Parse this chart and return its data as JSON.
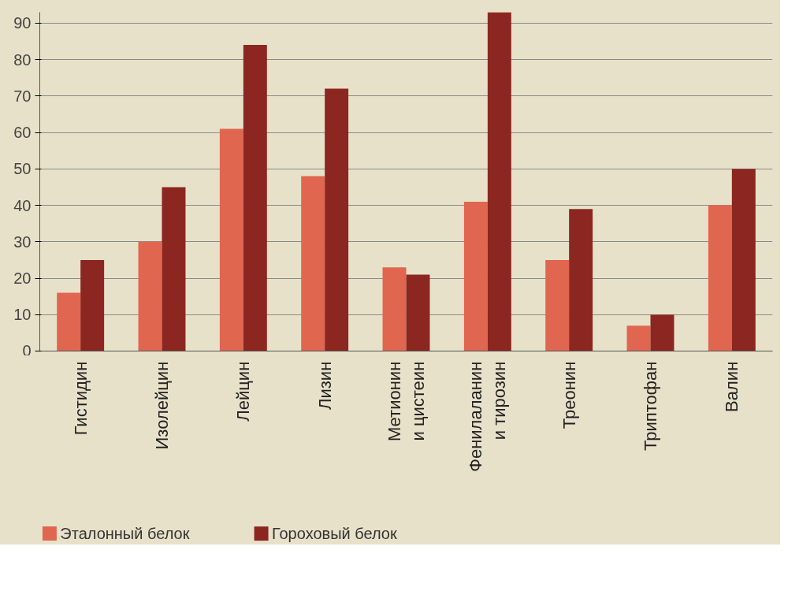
{
  "chart_data": {
    "type": "bar",
    "categories": [
      "Гистидин",
      "Изолейцин",
      "Лейцин",
      "Лизин",
      "Метионин\nи цистеин",
      "Фенилаланин\nи тирозин",
      "Треонин",
      "Триптофан",
      "Валин"
    ],
    "series": [
      {
        "name": "Эталонный белок",
        "color": "#e06650",
        "values": [
          16,
          30,
          61,
          48,
          23,
          41,
          25,
          7,
          40
        ]
      },
      {
        "name": "Гороховый белок",
        "color": "#8b2720",
        "values": [
          25,
          45,
          84,
          72,
          21,
          93,
          39,
          10,
          50
        ]
      }
    ],
    "ylim": [
      0,
      93
    ],
    "yticks": [
      0,
      10,
      20,
      30,
      40,
      50,
      60,
      70,
      80,
      90
    ],
    "grid": "y",
    "legend": "bottom left"
  }
}
